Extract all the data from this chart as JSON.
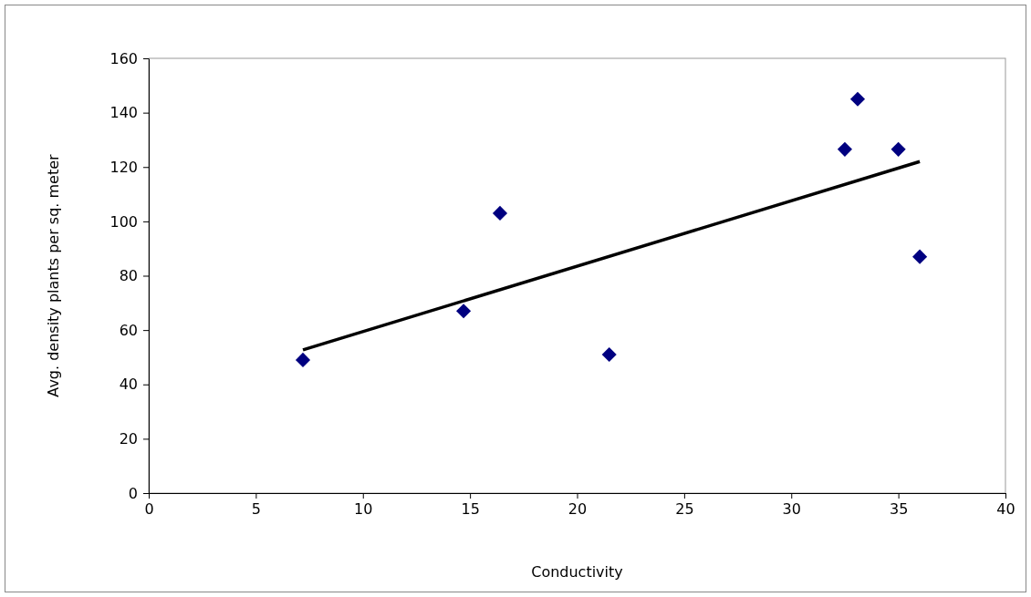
{
  "chart_data": {
    "type": "scatter",
    "xlabel": "Conductivity",
    "ylabel": "Avg. density plants per sq. meter",
    "xlim": [
      0,
      40
    ],
    "xticks": [
      0,
      5,
      10,
      15,
      20,
      25,
      30,
      35,
      40
    ],
    "ylim": [
      0,
      160
    ],
    "yticks": [
      0,
      20,
      40,
      60,
      80,
      100,
      120,
      140,
      160
    ],
    "grid": false,
    "marker": "diamond",
    "series": [
      {
        "color": "#000080",
        "x": [
          7.2,
          14.7,
          16.4,
          21.5,
          32.5,
          33.1,
          35,
          36
        ],
        "values": [
          49,
          67,
          103,
          51,
          126.5,
          145,
          126.5,
          87
        ]
      },
      {
        "type": "line",
        "color": "#000000",
        "line_style": "solid",
        "marker": "none",
        "x": [
          7.2,
          36
        ],
        "values": [
          52.7,
          122
        ]
      }
    ]
  }
}
